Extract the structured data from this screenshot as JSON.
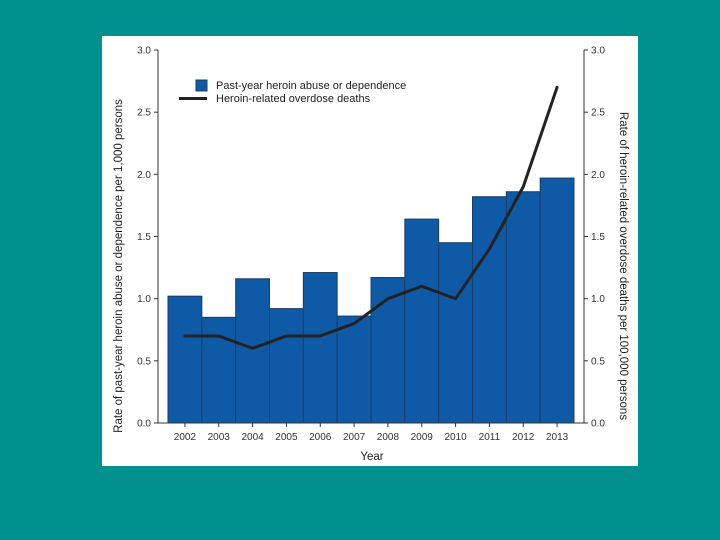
{
  "colors": {
    "background": "#00918f",
    "panel": "#ffffff",
    "bar_fill": "#0f5aa6",
    "bar_stroke": "#1b3d66",
    "line": "#222222",
    "axis": "#333333"
  },
  "chart_data": {
    "type": "bar",
    "title": "",
    "xlabel": "Year",
    "ylabel": "Rate of past-year heroin abuse or dependence per 1,000 persons",
    "y2label": "Rate of heroin-related overdose deaths per 100,000 persons",
    "ylim": [
      0,
      3
    ],
    "y2lim": [
      0,
      3
    ],
    "yticks": [
      "0.0",
      "0.5",
      "1.0",
      "1.5",
      "2.0",
      "2.5",
      "3.0"
    ],
    "categories": [
      "2002",
      "2003",
      "2004",
      "2005",
      "2006",
      "2007",
      "2008",
      "2009",
      "2010",
      "2011",
      "2012",
      "2013"
    ],
    "series": [
      {
        "name": "Past-year heroin abuse or dependence",
        "type": "bar",
        "axis": "left",
        "values": [
          1.02,
          0.85,
          1.16,
          0.92,
          1.21,
          0.86,
          1.17,
          1.64,
          1.45,
          1.82,
          1.86,
          1.97
        ]
      },
      {
        "name": "Heroin-related overdose deaths",
        "type": "line",
        "axis": "right",
        "values": [
          0.7,
          0.7,
          0.6,
          0.7,
          0.7,
          0.8,
          1.0,
          1.1,
          1.0,
          1.4,
          1.9,
          2.7
        ]
      }
    ],
    "legend_position": "top-left",
    "grid": false
  }
}
